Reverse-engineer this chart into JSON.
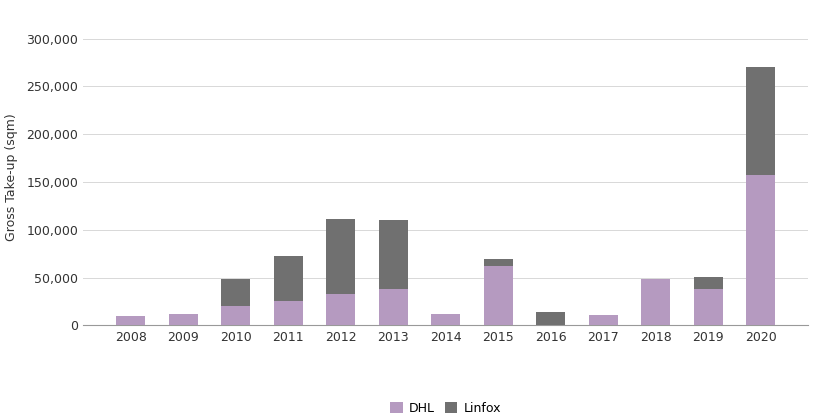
{
  "years": [
    2008,
    2009,
    2010,
    2011,
    2012,
    2013,
    2014,
    2015,
    2016,
    2017,
    2018,
    2019,
    2020
  ],
  "DHL": [
    10000,
    12000,
    20000,
    25000,
    33000,
    38000,
    12000,
    62000,
    0,
    11000,
    48000,
    38000,
    157000
  ],
  "Linfox": [
    0,
    0,
    28000,
    47000,
    78000,
    72000,
    0,
    7000,
    14000,
    0,
    0,
    13000,
    113000
  ],
  "dhl_color": "#b59ac0",
  "linfox_color": "#707070",
  "ylabel": "Gross Take-up (sqm)",
  "ylim": [
    0,
    310000
  ],
  "yticks": [
    0,
    50000,
    100000,
    150000,
    200000,
    250000,
    300000
  ],
  "legend_labels": [
    "DHL",
    "Linfox"
  ],
  "bar_width": 0.55,
  "background_color": "#ffffff",
  "grid_color": "#d8d8d8"
}
